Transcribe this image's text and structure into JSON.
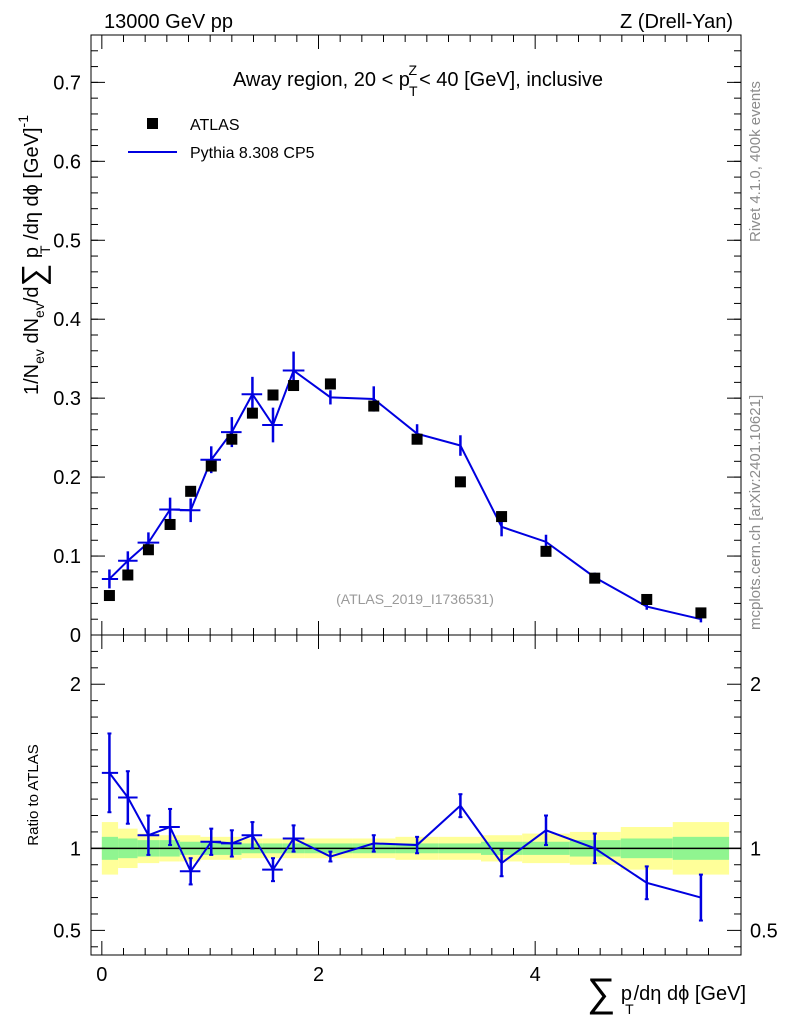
{
  "header": {
    "left": "13000 GeV pp",
    "right": "Z (Drell-Yan)"
  },
  "side_text": {
    "rivet": "Rivet 4.1.0,  400k events",
    "mcplots": "mcplots.cern.ch [arXiv:2401.10621]"
  },
  "chart_data": [
    {
      "type": "scatter",
      "title": "Away region, 20 < p_T^Z < 40 [GeV], inclusive",
      "ylabel": "1/N_ev dN_ev/d Σ p_T /dη dφ [GeV]^-1",
      "ylim": [
        0,
        0.76
      ],
      "xlim": [
        -0.1,
        5.9
      ],
      "watermark": "(ATLAS_2019_I1736531)",
      "yticks": [
        "0",
        "0.1",
        "0.2",
        "0.3",
        "0.4",
        "0.5",
        "0.6",
        "0.7"
      ],
      "legend": [
        "ATLAS",
        "Pythia 8.308 CP5"
      ],
      "series": [
        {
          "name": "ATLAS",
          "x": [
            0.07,
            0.24,
            0.43,
            0.63,
            0.82,
            1.01,
            1.2,
            1.39,
            1.58,
            1.77,
            2.11,
            2.51,
            2.91,
            3.31,
            3.69,
            4.1,
            4.55,
            5.03,
            5.53
          ],
          "y": [
            0.05,
            0.076,
            0.108,
            0.14,
            0.182,
            0.214,
            0.248,
            0.281,
            0.304,
            0.316,
            0.318,
            0.29,
            0.248,
            0.194,
            0.15,
            0.106,
            0.072,
            0.045,
            0.028
          ]
        },
        {
          "name": "Pythia 8.308 CP5",
          "x": [
            0.07,
            0.24,
            0.43,
            0.63,
            0.82,
            1.01,
            1.2,
            1.39,
            1.58,
            1.77,
            2.11,
            2.51,
            2.91,
            3.31,
            3.69,
            4.1,
            4.55,
            5.03,
            5.53
          ],
          "y": [
            0.071,
            0.094,
            0.117,
            0.159,
            0.158,
            0.222,
            0.257,
            0.305,
            0.266,
            0.335,
            0.301,
            0.299,
            0.255,
            0.24,
            0.137,
            0.118,
            0.073,
            0.036,
            0.02
          ],
          "err": [
            0.012,
            0.012,
            0.013,
            0.015,
            0.015,
            0.017,
            0.019,
            0.022,
            0.022,
            0.024,
            0.009,
            0.016,
            0.012,
            0.013,
            0.012,
            0.009,
            0.006,
            0.004,
            0.004
          ],
          "step_x": [
            [
              0.0,
              0.15
            ],
            [
              0.15,
              0.33
            ],
            [
              0.33,
              0.53
            ],
            [
              0.53,
              0.72
            ],
            [
              0.72,
              0.91
            ],
            [
              0.91,
              1.1
            ],
            [
              1.1,
              1.29
            ],
            [
              1.29,
              1.48
            ],
            [
              1.48,
              1.67
            ],
            [
              1.67,
              1.87
            ]
          ]
        }
      ]
    },
    {
      "type": "line",
      "xlabel": "Σ p_T /dη dφ [GeV]",
      "ylabel": "Ratio to ATLAS",
      "ylim": [
        0.35,
        2.3
      ],
      "xlim": [
        -0.1,
        5.9
      ],
      "xticks": [
        "0",
        "2",
        "4"
      ],
      "yticks": [
        "0.5",
        "1",
        "2"
      ],
      "bands": {
        "edges": [
          0.0,
          0.15,
          0.33,
          0.53,
          0.72,
          0.91,
          1.1,
          1.29,
          1.48,
          1.67,
          1.87,
          2.31,
          2.71,
          3.11,
          3.5,
          3.88,
          4.32,
          4.79,
          5.27,
          5.79
        ],
        "inner": [
          0.07,
          0.06,
          0.05,
          0.05,
          0.04,
          0.04,
          0.04,
          0.03,
          0.03,
          0.03,
          0.03,
          0.03,
          0.03,
          0.03,
          0.04,
          0.04,
          0.05,
          0.06,
          0.07
        ],
        "outer": [
          0.16,
          0.12,
          0.09,
          0.08,
          0.08,
          0.07,
          0.07,
          0.06,
          0.06,
          0.06,
          0.06,
          0.06,
          0.07,
          0.07,
          0.08,
          0.09,
          0.1,
          0.13,
          0.16
        ]
      },
      "series": [
        {
          "name": "Pythia 8.308 CP5 / ATLAS",
          "x": [
            0.07,
            0.24,
            0.43,
            0.63,
            0.82,
            1.01,
            1.2,
            1.39,
            1.58,
            1.77,
            2.11,
            2.51,
            2.91,
            3.31,
            3.69,
            4.1,
            4.55,
            5.03,
            5.53
          ],
          "y": [
            1.46,
            1.31,
            1.08,
            1.13,
            0.86,
            1.04,
            1.03,
            1.08,
            0.87,
            1.06,
            0.95,
            1.03,
            1.02,
            1.26,
            0.91,
            1.11,
            1.0,
            0.79,
            0.7
          ],
          "err": [
            0.24,
            0.16,
            0.12,
            0.11,
            0.08,
            0.08,
            0.08,
            0.08,
            0.07,
            0.08,
            0.03,
            0.05,
            0.05,
            0.07,
            0.08,
            0.09,
            0.09,
            0.1,
            0.14
          ],
          "step_x": [
            [
              0.0,
              0.15
            ],
            [
              0.15,
              0.33
            ],
            [
              0.33,
              0.53
            ],
            [
              0.53,
              0.72
            ],
            [
              0.72,
              0.91
            ],
            [
              0.91,
              1.1
            ],
            [
              1.1,
              1.29
            ],
            [
              1.29,
              1.48
            ],
            [
              1.48,
              1.67
            ],
            [
              1.67,
              1.87
            ]
          ]
        }
      ]
    }
  ],
  "colors": {
    "mc": "#0000e0",
    "data": "#000000",
    "band_inner": "#90f590",
    "band_outer": "#ffff99",
    "watermark": "#9a9a9a"
  }
}
